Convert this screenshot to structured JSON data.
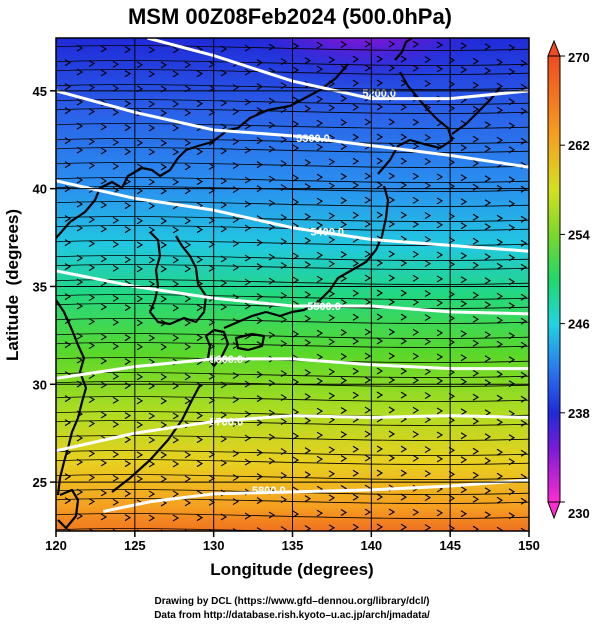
{
  "title": "MSM 00Z08Feb2024 (500.0hPa)",
  "chart_data": {
    "type": "heatmap",
    "title": "MSM 00Z08Feb2024 (500.0hPa)",
    "xlabel": "Longitude (degrees)",
    "ylabel": "Latitude  (degrees)",
    "xlim": [
      120,
      150
    ],
    "ylim": [
      22.5,
      47.7
    ],
    "x_ticks": [
      "120",
      "125",
      "130",
      "135",
      "140",
      "145",
      "150"
    ],
    "y_ticks": [
      "25",
      "30",
      "35",
      "40",
      "45"
    ],
    "colorbar": {
      "range": [
        230,
        270
      ],
      "ticks": [
        "230",
        "238",
        "246",
        "254",
        "262",
        "270"
      ],
      "colors": [
        "#ff2cd0",
        "#7a1ad8",
        "#1f2ad8",
        "#2a7af0",
        "#21d4e0",
        "#22d86a",
        "#7ad82a",
        "#d4e022",
        "#f5a020",
        "#f04a20"
      ]
    },
    "contours": [
      {
        "label": "5200.0",
        "points": [
          [
            125.8,
            47.7
          ],
          [
            130,
            46.8
          ],
          [
            135,
            45.5
          ],
          [
            140,
            44.6
          ],
          [
            145,
            44.6
          ],
          [
            150,
            45.0
          ]
        ],
        "label_at": [
          140.5,
          44.9
        ]
      },
      {
        "label": "5300.0",
        "points": [
          [
            120,
            45.0
          ],
          [
            125,
            43.9
          ],
          [
            130,
            43.0
          ],
          [
            135,
            42.7
          ],
          [
            140,
            42.2
          ],
          [
            145,
            41.7
          ],
          [
            150,
            41.1
          ]
        ],
        "label_at": [
          136.3,
          42.6
        ]
      },
      {
        "label": "5400.0",
        "points": [
          [
            120,
            40.4
          ],
          [
            125,
            39.5
          ],
          [
            130,
            38.9
          ],
          [
            135,
            38.0
          ],
          [
            140,
            37.4
          ],
          [
            145,
            37.1
          ],
          [
            150,
            36.8
          ]
        ],
        "label_at": [
          137.2,
          37.8
        ]
      },
      {
        "label": "5500.0",
        "points": [
          [
            120,
            35.8
          ],
          [
            125,
            35.0
          ],
          [
            130,
            34.4
          ],
          [
            135,
            34.0
          ],
          [
            140,
            34.0
          ],
          [
            145,
            33.7
          ],
          [
            150,
            33.6
          ]
        ],
        "label_at": [
          137.0,
          34.0
        ]
      },
      {
        "label": "5600.0",
        "points": [
          [
            120,
            30.3
          ],
          [
            125,
            30.9
          ],
          [
            130,
            31.3
          ],
          [
            135,
            31.3
          ],
          [
            140,
            31.0
          ],
          [
            145,
            30.8
          ],
          [
            150,
            30.8
          ]
        ],
        "label_at": [
          130.8,
          31.3
        ]
      },
      {
        "label": "5700.0",
        "points": [
          [
            120,
            26.6
          ],
          [
            125,
            27.5
          ],
          [
            130,
            28.1
          ],
          [
            135,
            28.4
          ],
          [
            140,
            28.3
          ],
          [
            145,
            28.4
          ],
          [
            150,
            28.3
          ]
        ],
        "label_at": [
          130.8,
          28.1
        ]
      },
      {
        "label": "5800.0",
        "points": [
          [
            123,
            23.5
          ],
          [
            126,
            24.0
          ],
          [
            130,
            24.4
          ],
          [
            135,
            24.5
          ],
          [
            140,
            24.6
          ],
          [
            145,
            24.8
          ],
          [
            150,
            25.1
          ]
        ],
        "label_at": [
          133.5,
          24.6
        ]
      }
    ]
  },
  "credits": {
    "line1": "Drawing by DCL (https://www.gfd–dennou.org/library/dcl/)",
    "line2": "Data from http://database.rish.kyoto–u.ac.jp/arch/jmadata/"
  }
}
